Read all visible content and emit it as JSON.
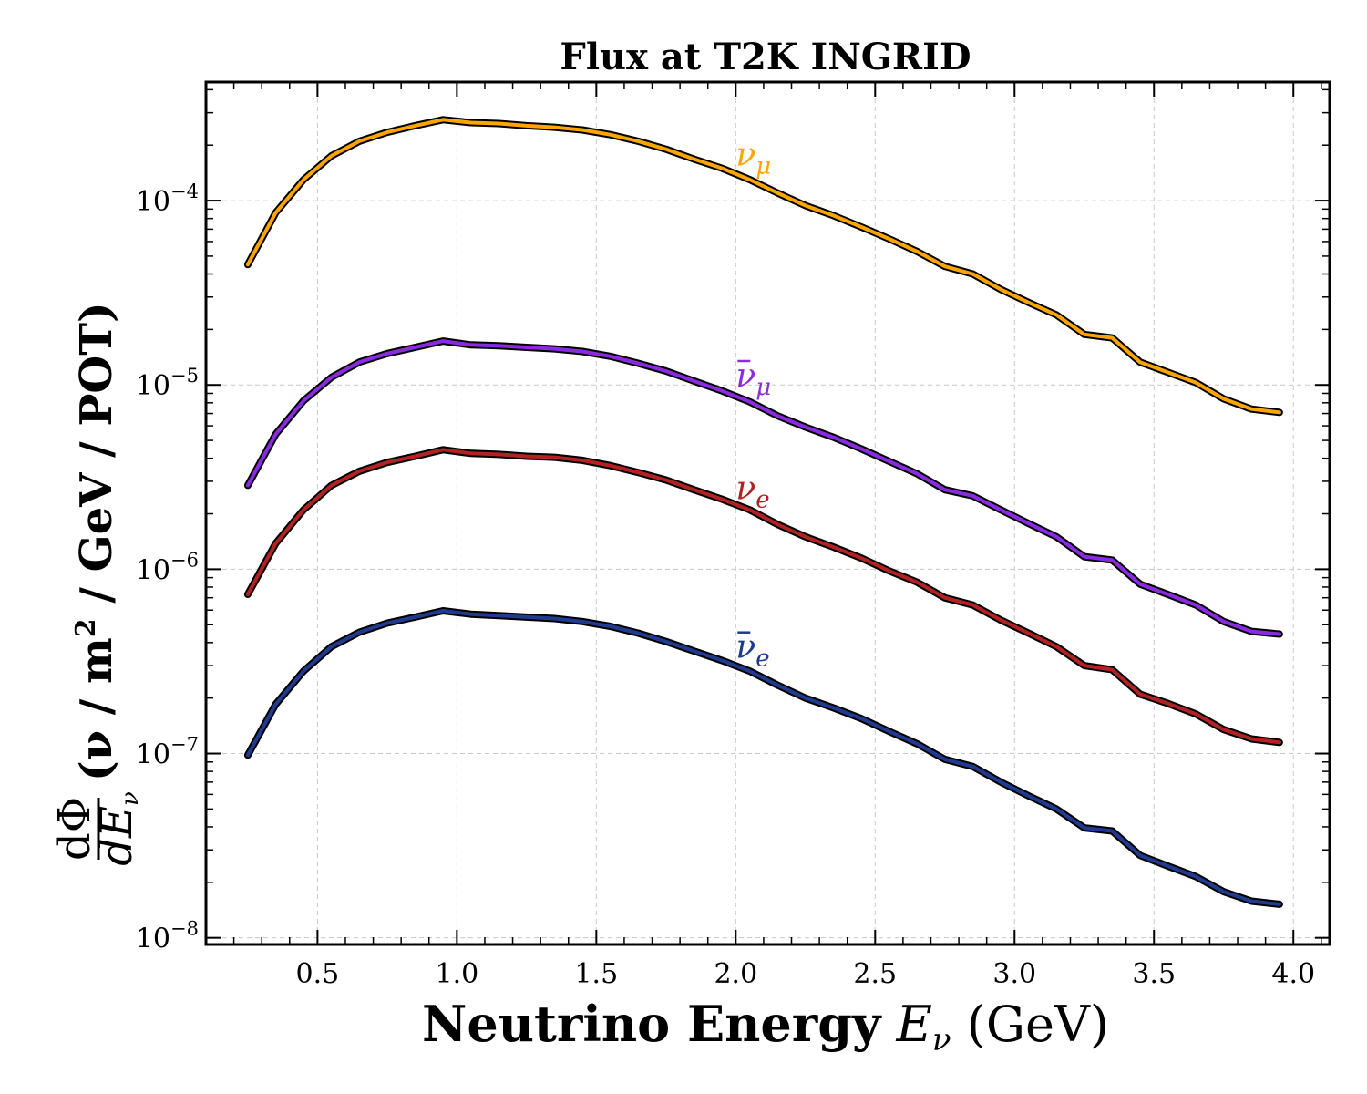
{
  "chart_data": {
    "type": "line",
    "title": "Flux at T2K INGRID",
    "xlabel": {
      "bold": "Neutrino Energy",
      "symbol": "E",
      "subscript": "ν",
      "unit": "(GeV)"
    },
    "ylabel": {
      "numerator": "dΦ",
      "denominator": "dE",
      "denominator_sub": "ν",
      "text_before_sup": "(ν / m",
      "sup": "2",
      "text_after_sup": " / GeV / POT)"
    },
    "xlim": [
      0.1,
      4.13
    ],
    "ylim": [
      9.2e-09,
      0.00044
    ],
    "yscale": "log",
    "grid": true,
    "x_ticks": [
      0.5,
      1.0,
      1.5,
      2.0,
      2.5,
      3.0,
      3.5,
      4.0
    ],
    "x_tick_labels": [
      "0.5",
      "1.0",
      "1.5",
      "2.0",
      "2.5",
      "3.0",
      "3.5",
      "4.0"
    ],
    "y_ticks": [
      1e-08,
      1e-07,
      1e-06,
      1e-05,
      0.0001
    ],
    "y_tick_labels": [
      {
        "base": "10",
        "exp": "−8"
      },
      {
        "base": "10",
        "exp": "−7"
      },
      {
        "base": "10",
        "exp": "−6"
      },
      {
        "base": "10",
        "exp": "−5"
      },
      {
        "base": "10",
        "exp": "−4"
      }
    ],
    "x": [
      0.25,
      0.35,
      0.45,
      0.55,
      0.65,
      0.75,
      0.85,
      0.95,
      1.05,
      1.15,
      1.25,
      1.35,
      1.45,
      1.55,
      1.65,
      1.75,
      1.85,
      1.95,
      2.05,
      2.15,
      2.25,
      2.35,
      2.45,
      2.55,
      2.65,
      2.75,
      2.85,
      2.95,
      3.05,
      3.15,
      3.25,
      3.35,
      3.45,
      3.55,
      3.65,
      3.75,
      3.85,
      3.95
    ],
    "series": [
      {
        "name": "ν",
        "name_sub": "μ",
        "bar": false,
        "color": "#FFA500",
        "label_at": {
          "x": 2.0,
          "y": 0.000155
        },
        "values": [
          4.5e-05,
          8.6e-05,
          0.00013,
          0.000175,
          0.00021,
          0.000235,
          0.000255,
          0.000275,
          0.000265,
          0.000262,
          0.000255,
          0.00025,
          0.000242,
          0.000228,
          0.00021,
          0.00019,
          0.000168,
          0.00015,
          0.00013,
          0.00011,
          9.4e-05,
          8.3e-05,
          7.2e-05,
          6.2e-05,
          5.3e-05,
          4.4e-05,
          4e-05,
          3.3e-05,
          2.8e-05,
          2.4e-05,
          1.88e-05,
          1.8e-05,
          1.33e-05,
          1.17e-05,
          1.03e-05,
          8.4e-06,
          7.4e-06,
          7.1e-06
        ]
      },
      {
        "name": "ν",
        "name_sub": "μ",
        "bar": true,
        "color": "#8A2BE2",
        "label_at": {
          "x": 2.0,
          "y": 9.8e-06
        },
        "values": [
          2.85e-06,
          5.4e-06,
          8.2e-06,
          1.1e-05,
          1.33e-05,
          1.48e-05,
          1.6e-05,
          1.73e-05,
          1.65e-05,
          1.63e-05,
          1.6e-05,
          1.57e-05,
          1.52e-05,
          1.43e-05,
          1.31e-05,
          1.19e-05,
          1.05e-05,
          9.3e-06,
          8.1e-06,
          6.8e-06,
          5.9e-06,
          5.2e-06,
          4.5e-06,
          3.85e-06,
          3.3e-06,
          2.7e-06,
          2.5e-06,
          2.1e-06,
          1.77e-06,
          1.5e-06,
          1.17e-06,
          1.12e-06,
          8.3e-07,
          7.3e-07,
          6.4e-07,
          5.2e-07,
          4.6e-07,
          4.45e-07
        ]
      },
      {
        "name": "ν",
        "name_sub": "e",
        "bar": false,
        "color": "#B22222",
        "label_at": {
          "x": 2.0,
          "y": 2.4e-06
        },
        "values": [
          7.3e-07,
          1.38e-06,
          2.1e-06,
          2.85e-06,
          3.4e-06,
          3.8e-06,
          4.1e-06,
          4.45e-06,
          4.25e-06,
          4.2e-06,
          4.1e-06,
          4.05e-06,
          3.9e-06,
          3.65e-06,
          3.35e-06,
          3.05e-06,
          2.7e-06,
          2.4e-06,
          2.1e-06,
          1.75e-06,
          1.5e-06,
          1.32e-06,
          1.15e-06,
          9.8e-07,
          8.5e-07,
          7e-07,
          6.4e-07,
          5.3e-07,
          4.5e-07,
          3.8e-07,
          3e-07,
          2.85e-07,
          2.1e-07,
          1.87e-07,
          1.64e-07,
          1.35e-07,
          1.2e-07,
          1.15e-07
        ]
      },
      {
        "name": "ν",
        "name_sub": "e",
        "bar": true,
        "color": "#203A8F",
        "label_at": {
          "x": 2.0,
          "y": 3.3e-07
        },
        "values": [
          9.8e-08,
          1.85e-07,
          2.8e-07,
          3.8e-07,
          4.55e-07,
          5.1e-07,
          5.5e-07,
          5.95e-07,
          5.7e-07,
          5.6e-07,
          5.5e-07,
          5.4e-07,
          5.2e-07,
          4.9e-07,
          4.5e-07,
          4.05e-07,
          3.6e-07,
          3.2e-07,
          2.8e-07,
          2.35e-07,
          2e-07,
          1.77e-07,
          1.55e-07,
          1.32e-07,
          1.13e-07,
          9.3e-08,
          8.5e-08,
          7e-08,
          5.9e-08,
          5e-08,
          3.95e-08,
          3.8e-08,
          2.8e-08,
          2.45e-08,
          2.15e-08,
          1.78e-08,
          1.58e-08,
          1.52e-08
        ]
      }
    ]
  }
}
